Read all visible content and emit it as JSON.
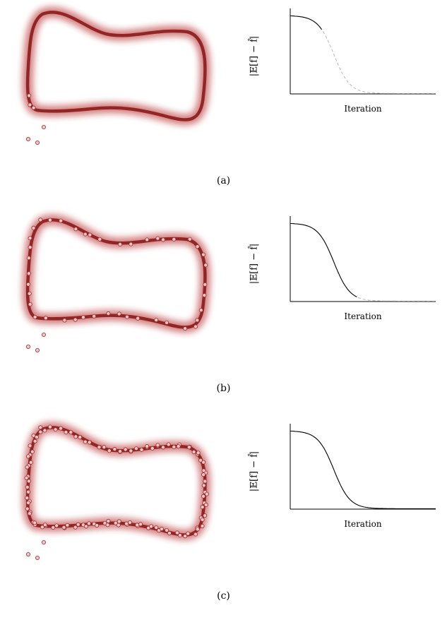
{
  "figure": {
    "y_axis_label": "|𝔼[f] − f̂|",
    "x_axis_label": "Iteration",
    "colors": {
      "path": "#8b1a1a",
      "path_glow": "#b22222",
      "sample_fill": "#f6c6c6",
      "sample_stroke": "#9b2b2b",
      "curve": "#000000",
      "curve_dashed": "#b8b8b8"
    },
    "panels": [
      {
        "caption": "(a)",
        "samples_on_path": 3,
        "samples_off_path": 3,
        "curve_solid_until": 0.22
      },
      {
        "caption": "(b)",
        "samples_on_path": 43,
        "samples_off_path": 3,
        "curve_solid_until": 0.46
      },
      {
        "caption": "(c)",
        "samples_on_path": 125,
        "samples_off_path": 3,
        "curve_solid_until": 1.0
      }
    ]
  },
  "chart_data": [
    {
      "type": "line",
      "title": "",
      "xlabel": "Iteration",
      "ylabel": "|𝔼[f] − f̂|",
      "shape": "sigmoid decay (converged error plateau)",
      "x": [
        0,
        0.1,
        0.2,
        0.3,
        0.4,
        0.5,
        0.6,
        0.7,
        0.8,
        0.9,
        1.0
      ],
      "y": [
        1.0,
        0.98,
        0.92,
        0.7,
        0.4,
        0.18,
        0.09,
        0.06,
        0.05,
        0.04,
        0.04
      ],
      "solid_until": 0.22,
      "dashed_remainder": true
    },
    {
      "type": "line",
      "title": "",
      "xlabel": "Iteration",
      "ylabel": "|𝔼[f] − f̂|",
      "shape": "sigmoid decay (converged error plateau)",
      "x": [
        0,
        0.1,
        0.2,
        0.3,
        0.4,
        0.5,
        0.6,
        0.7,
        0.8,
        0.9,
        1.0
      ],
      "y": [
        1.0,
        0.98,
        0.92,
        0.7,
        0.4,
        0.18,
        0.09,
        0.06,
        0.05,
        0.04,
        0.04
      ],
      "solid_until": 0.46,
      "dashed_remainder": true
    },
    {
      "type": "line",
      "title": "",
      "xlabel": "Iteration",
      "ylabel": "|𝔼[f] − f̂|",
      "shape": "sigmoid decay (converged error plateau)",
      "x": [
        0,
        0.1,
        0.2,
        0.3,
        0.4,
        0.5,
        0.6,
        0.7,
        0.8,
        0.9,
        1.0
      ],
      "y": [
        1.0,
        0.98,
        0.92,
        0.7,
        0.4,
        0.18,
        0.09,
        0.06,
        0.05,
        0.04,
        0.04
      ],
      "solid_until": 1.0,
      "dashed_remainder": false
    }
  ]
}
